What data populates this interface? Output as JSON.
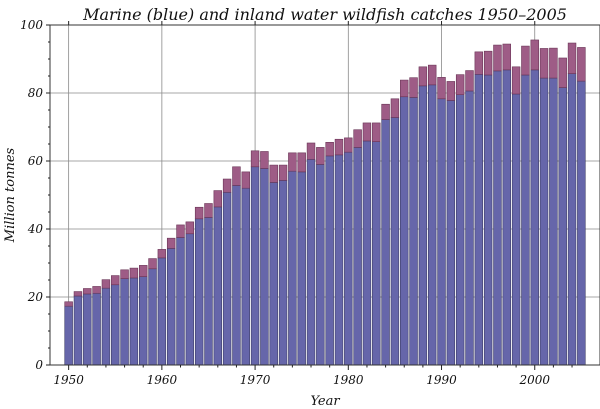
{
  "chart_data": {
    "type": "bar",
    "stacked": true,
    "title": "Marine (blue) and inland water wildfish catches 1950–2005",
    "xlabel": "Year",
    "ylabel": "Million tonnes",
    "xlim": [
      1948,
      2007
    ],
    "ylim": [
      0,
      100
    ],
    "grid": true,
    "x_ticks": [
      1950,
      1960,
      1970,
      1980,
      1990,
      2000
    ],
    "y_ticks": [
      0,
      20,
      40,
      60,
      80,
      100
    ],
    "categories": [
      1950,
      1951,
      1952,
      1953,
      1954,
      1955,
      1956,
      1957,
      1958,
      1959,
      1960,
      1961,
      1962,
      1963,
      1964,
      1965,
      1966,
      1967,
      1968,
      1969,
      1970,
      1971,
      1972,
      1973,
      1974,
      1975,
      1976,
      1977,
      1978,
      1979,
      1980,
      1981,
      1982,
      1983,
      1984,
      1985,
      1986,
      1987,
      1988,
      1989,
      1990,
      1991,
      1992,
      1993,
      1994,
      1995,
      1996,
      1997,
      1998,
      1999,
      2000,
      2001,
      2002,
      2003,
      2004,
      2005
    ],
    "series": [
      {
        "name": "Marine",
        "color": "#6666aa",
        "values": [
          17.3,
          20.3,
          20.9,
          21.1,
          22.6,
          23.6,
          25.4,
          25.6,
          26.0,
          28.3,
          31.5,
          34.3,
          37.5,
          38.6,
          43.0,
          43.4,
          46.5,
          50.8,
          52.8,
          52.0,
          58.3,
          57.8,
          53.7,
          54.3,
          57.0,
          56.8,
          60.5,
          59.0,
          61.5,
          61.8,
          62.6,
          64.0,
          65.9,
          65.7,
          72.2,
          72.8,
          78.9,
          78.7,
          82.1,
          82.4,
          78.3,
          77.8,
          79.5,
          80.6,
          85.5,
          85.3,
          86.5,
          86.8,
          79.7,
          85.3,
          86.8,
          84.4,
          84.4,
          81.6,
          85.7,
          83.5
        ]
      },
      {
        "name": "Inland",
        "color": "#9e5c86",
        "values": [
          1.3,
          1.3,
          1.6,
          2.0,
          2.5,
          2.7,
          2.6,
          2.9,
          3.3,
          3.0,
          2.5,
          3.0,
          3.7,
          3.5,
          3.4,
          4.1,
          4.8,
          3.9,
          5.5,
          4.8,
          4.7,
          5.0,
          5.1,
          4.5,
          5.4,
          5.6,
          4.8,
          5.0,
          4.0,
          4.6,
          4.2,
          5.2,
          5.3,
          5.5,
          4.5,
          5.5,
          4.9,
          5.8,
          5.6,
          5.8,
          6.3,
          5.6,
          5.9,
          6.0,
          6.6,
          7.0,
          7.6,
          7.6,
          8.0,
          8.5,
          8.8,
          8.7,
          8.8,
          8.7,
          9.0,
          9.9
        ]
      }
    ]
  }
}
